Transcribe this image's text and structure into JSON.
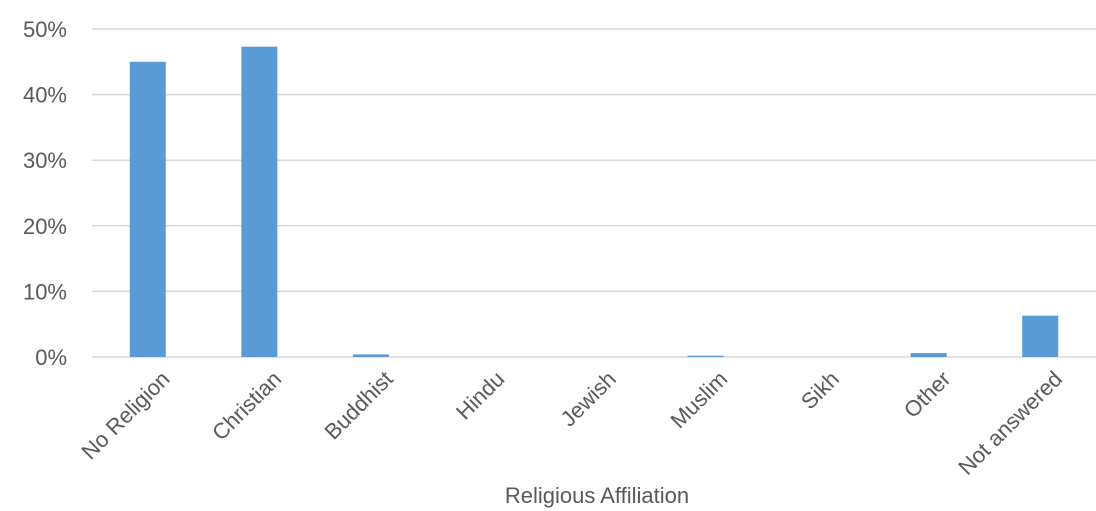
{
  "chart_data": {
    "type": "bar",
    "title": "",
    "xlabel": "Religious Affiliation",
    "ylabel": "",
    "categories": [
      "No Religion",
      "Christian",
      "Buddhist",
      "Hindu",
      "Jewish",
      "Muslim",
      "Sikh",
      "Other",
      "Not answered"
    ],
    "values": [
      45.0,
      47.3,
      0.4,
      0.0,
      0.0,
      0.2,
      0.0,
      0.6,
      6.3
    ],
    "ylim": [
      0,
      50
    ],
    "yticks": [
      0,
      10,
      20,
      30,
      40,
      50
    ],
    "ytick_labels": [
      "0%",
      "10%",
      "20%",
      "30%",
      "40%",
      "50%"
    ],
    "grid": true,
    "bar_color": "#5b9bd5"
  }
}
